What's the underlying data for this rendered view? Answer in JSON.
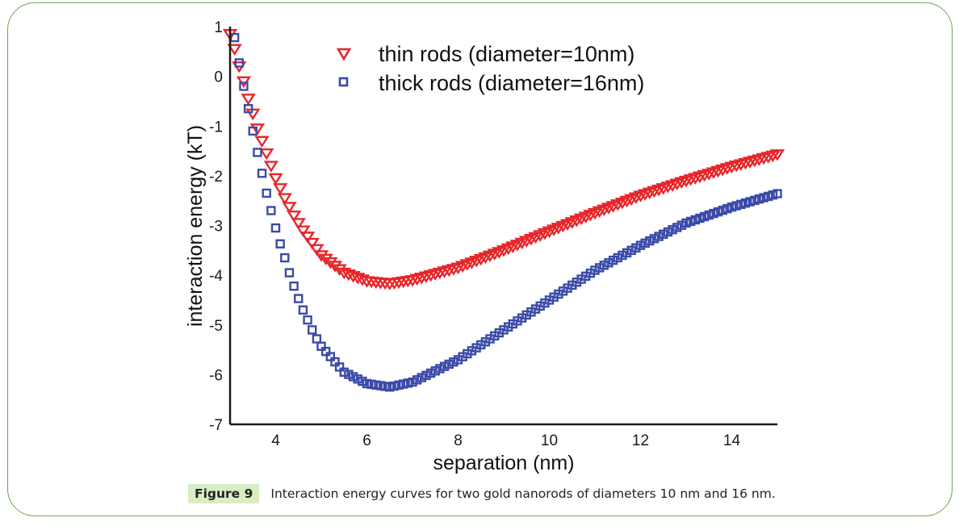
{
  "chart_data": {
    "type": "scatter",
    "title": "",
    "xlabel": "separation (nm)",
    "ylabel": "interaction energy (kT)",
    "xlim": [
      3,
      15
    ],
    "ylim": [
      -7,
      1
    ],
    "xticks": [
      "4",
      "6",
      "8",
      "10",
      "12",
      "14"
    ],
    "xtick_values": [
      4,
      6,
      8,
      10,
      12,
      14
    ],
    "yticks": [
      "1",
      "0",
      "-1",
      "-2",
      "-3",
      "-4",
      "-5",
      "-6",
      "-7"
    ],
    "ytick_values": [
      1,
      0,
      -1,
      -2,
      -3,
      -4,
      -5,
      -6,
      -7
    ],
    "grid": false,
    "legend_position": "top",
    "series": [
      {
        "name": "thin rods (diameter=10nm)",
        "marker": "triangle-down",
        "color": "#e8262a",
        "x": [
          3.0,
          3.1,
          3.2,
          3.3,
          3.4,
          3.5,
          3.6,
          3.7,
          3.8,
          3.9,
          4.0,
          4.2,
          4.4,
          4.6,
          4.8,
          5.0,
          5.5,
          6.0,
          6.5,
          7.0,
          8.0,
          9.0,
          10.0,
          11.0,
          12.0,
          13.0,
          14.0,
          15.0
        ],
        "y": [
          0.85,
          0.55,
          0.2,
          -0.1,
          -0.45,
          -0.75,
          -1.05,
          -1.3,
          -1.55,
          -1.8,
          -2.05,
          -2.45,
          -2.8,
          -3.1,
          -3.35,
          -3.6,
          -3.95,
          -4.12,
          -4.17,
          -4.1,
          -3.85,
          -3.5,
          -3.12,
          -2.75,
          -2.4,
          -2.1,
          -1.82,
          -1.57
        ]
      },
      {
        "name": "thick rods (diameter=16nm)",
        "marker": "square",
        "color": "#3a4aa8",
        "x": [
          3.1,
          3.2,
          3.3,
          3.4,
          3.5,
          3.6,
          3.7,
          3.8,
          3.9,
          4.0,
          4.1,
          4.2,
          4.3,
          4.4,
          4.5,
          4.6,
          4.7,
          4.8,
          4.9,
          5.0,
          5.5,
          6.0,
          6.5,
          7.0,
          8.0,
          9.0,
          10.0,
          11.0,
          12.0,
          13.0,
          14.0,
          15.0
        ],
        "y": [
          0.78,
          0.27,
          -0.2,
          -0.65,
          -1.1,
          -1.53,
          -1.95,
          -2.35,
          -2.7,
          -3.05,
          -3.37,
          -3.65,
          -3.95,
          -4.22,
          -4.47,
          -4.7,
          -4.9,
          -5.1,
          -5.28,
          -5.43,
          -5.95,
          -6.18,
          -6.25,
          -6.15,
          -5.7,
          -5.1,
          -4.5,
          -3.9,
          -3.4,
          -2.95,
          -2.63,
          -2.36
        ]
      }
    ]
  },
  "caption": {
    "label": "Figure 9",
    "text": "Interaction energy curves for two gold nanorods of diameters 10 nm and 16 nm."
  },
  "colors": {
    "frame": "#6aa84f",
    "caption_bg": "#d9ecc4"
  }
}
